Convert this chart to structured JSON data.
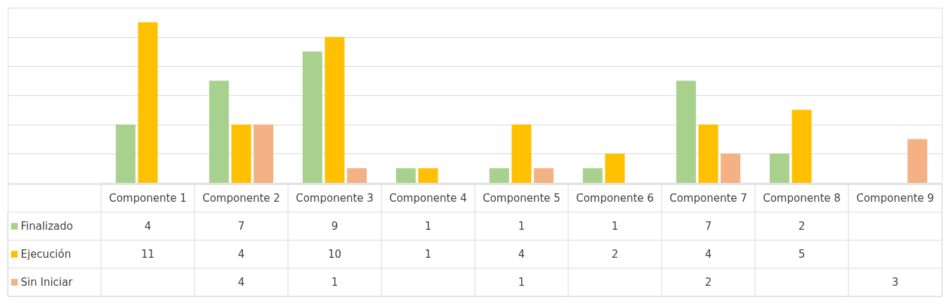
{
  "chart_data": {
    "type": "bar",
    "categories": [
      "Componente 1",
      "Componente 2",
      "Componente 3",
      "Componente 4",
      "Componente 5",
      "Componente 6",
      "Componente 7",
      "Componente 8",
      "Componente 9"
    ],
    "series": [
      {
        "name": "Finalizado",
        "color": "#a9d18e",
        "values": [
          4,
          7,
          9,
          1,
          1,
          1,
          7,
          2,
          null
        ]
      },
      {
        "name": "Ejecución",
        "color": "#ffc000",
        "values": [
          11,
          4,
          10,
          1,
          4,
          2,
          4,
          5,
          null
        ]
      },
      {
        "name": "Sin Iniciar",
        "color": "#f4b183",
        "values": [
          null,
          4,
          1,
          null,
          1,
          null,
          2,
          null,
          3
        ]
      }
    ],
    "ylim": [
      0,
      12
    ],
    "yticks": [
      {
        "value": 0,
        "label": null
      },
      {
        "value": 2,
        "label": null
      },
      {
        "value": 4,
        "label": null
      },
      {
        "value": 6,
        "label": null
      },
      {
        "value": 8,
        "label": null
      },
      {
        "value": 10,
        "label": null
      },
      {
        "value": 12,
        "label": null
      }
    ],
    "grid": "y",
    "legend": "left",
    "data_labels": true,
    "tick_labels": "x"
  }
}
